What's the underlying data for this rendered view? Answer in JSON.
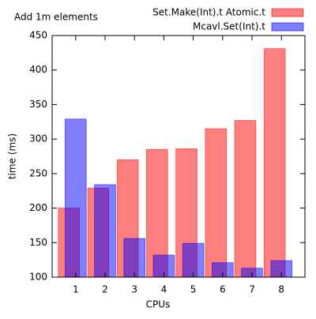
{
  "chart_data": {
    "type": "bar",
    "title": "Add 1m elements",
    "x_label": "CPUs",
    "y_label": "time (ms)",
    "x": [
      1,
      2,
      3,
      4,
      5,
      6,
      7,
      8
    ],
    "series": [
      {
        "name": "Set.Make(Int).t Atomic.t",
        "color": "#ff0000",
        "values": [
          200,
          229,
          270,
          285,
          286,
          315,
          327,
          431
        ]
      },
      {
        "name": "Mcavl.Set(Int).t",
        "color": "#0000ff",
        "values": [
          329,
          234,
          156,
          132,
          149,
          121,
          113,
          124
        ]
      }
    ],
    "xlim": [
      0.2,
      8.8
    ],
    "xticks": [
      1,
      2,
      3,
      4,
      5,
      6,
      7,
      8
    ],
    "ylim": [
      100,
      450
    ],
    "yticks": [
      100,
      150,
      200,
      250,
      300,
      350,
      400,
      450
    ],
    "legend": "top-right"
  }
}
